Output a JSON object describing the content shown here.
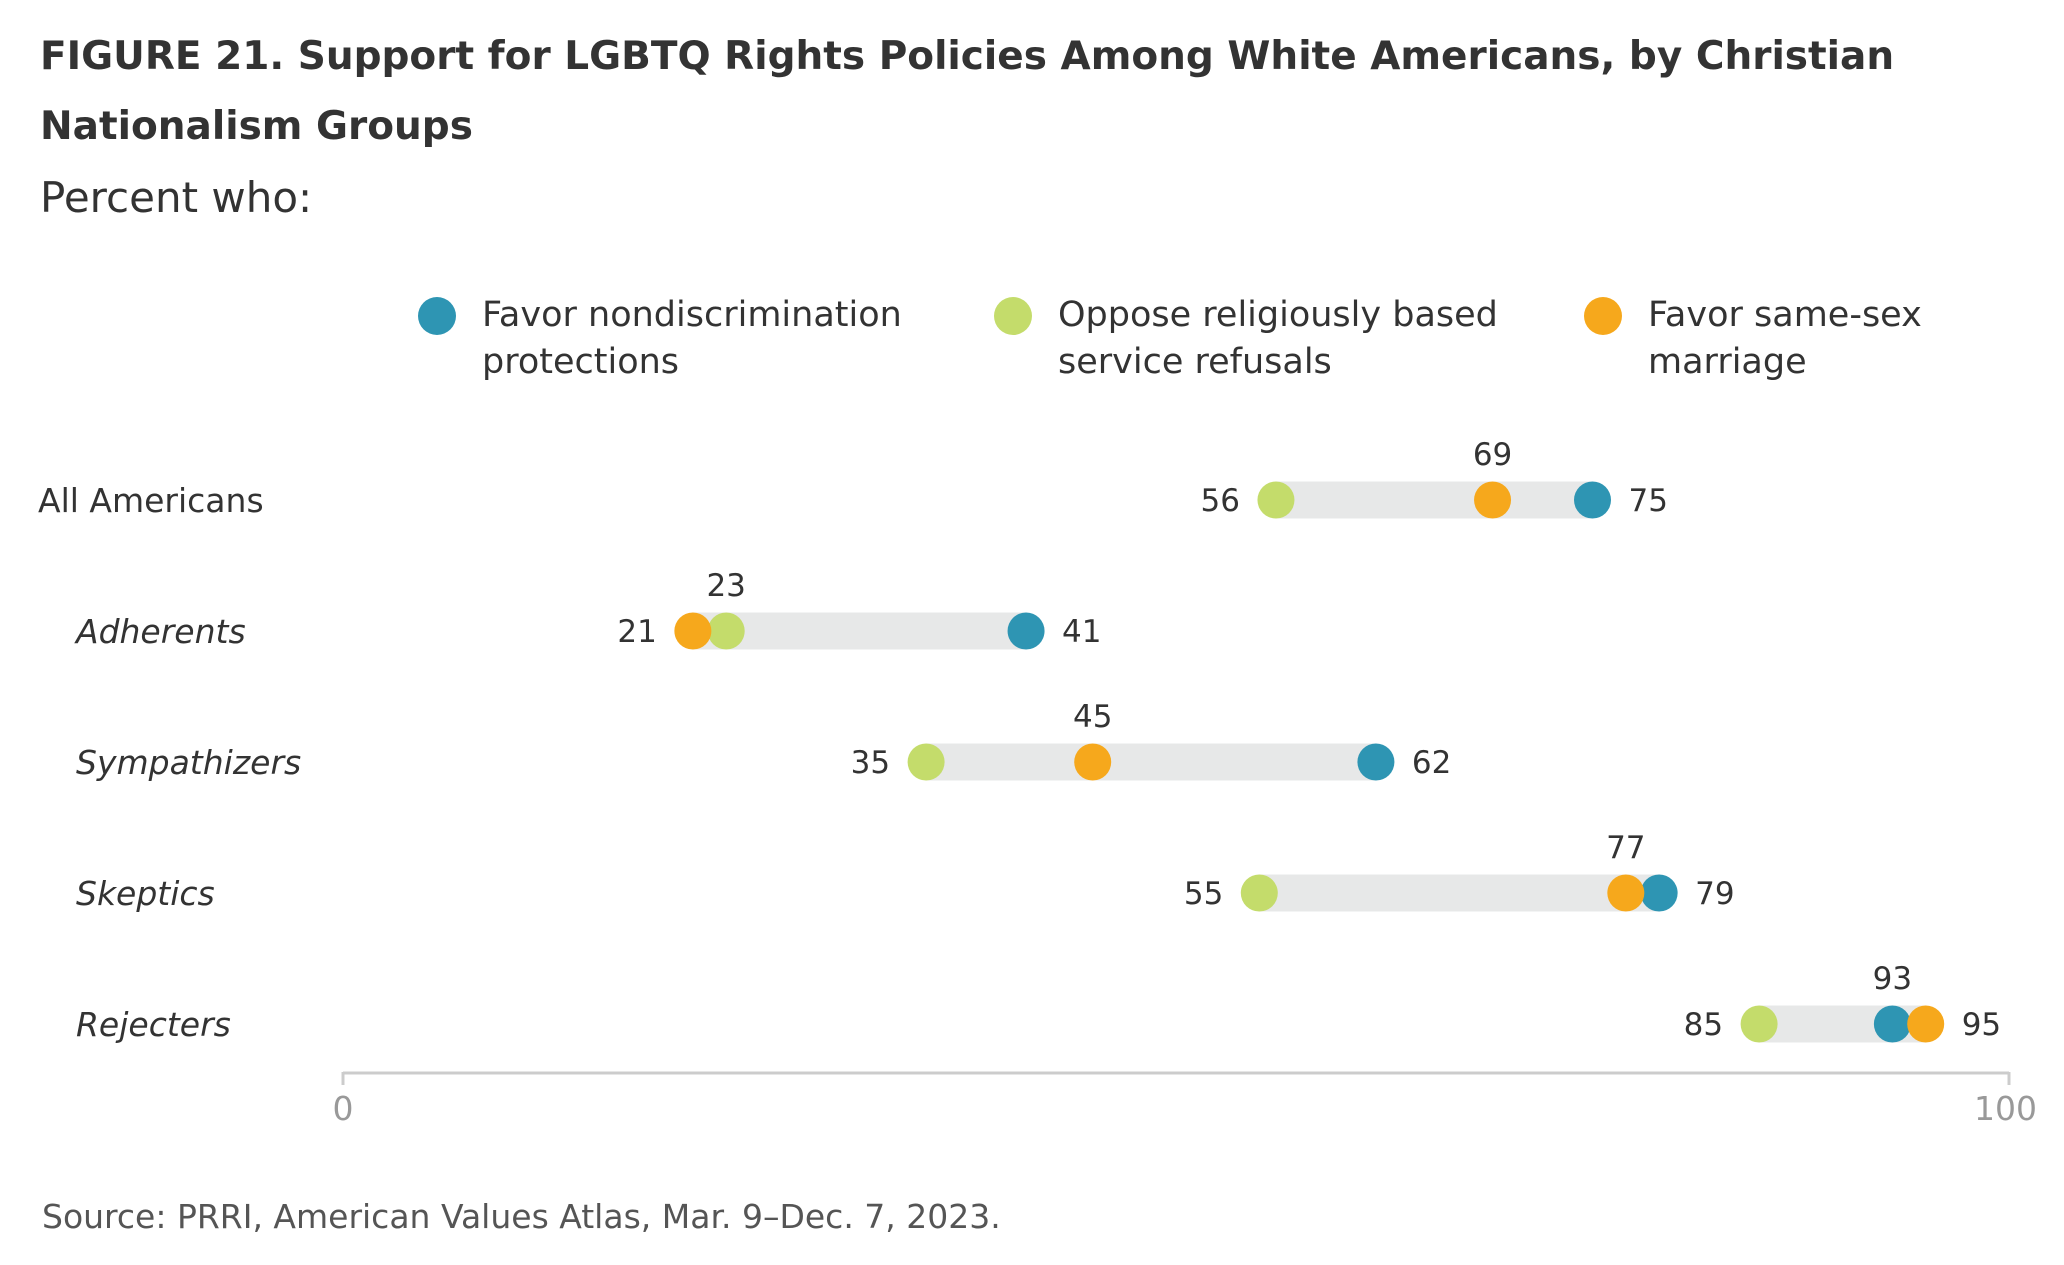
{
  "title": "FIGURE 21.  Support for LGBTQ Rights Policies Among White Americans, by Christian Nation­alism Groups",
  "subtitle": "Percent who:",
  "source": "Source: PRRI, American Values Atlas, Mar. 9–Dec. 7, 2023.",
  "colors": {
    "nondiscrimination": "#2e95b3",
    "service_refusals": "#c4dc6b",
    "same_sex_marriage": "#f6a81c",
    "bar": "#e7e8e8",
    "axis": "#cccccc"
  },
  "legend": [
    {
      "key": "nondiscrimination",
      "label": "Favor nondiscrimination protections"
    },
    {
      "key": "service_refusals",
      "label": "Oppose religiously based service refusals"
    },
    {
      "key": "same_sex_marriage",
      "label": "Favor same-sex marriage"
    }
  ],
  "chart_data": {
    "type": "dot-range",
    "categories": [
      "All Americans",
      "Adherents",
      "Sympathizers",
      "Skeptics",
      "Rejecters"
    ],
    "italic_categories": [
      "Adherents",
      "Sympathizers",
      "Skeptics",
      "Rejecters"
    ],
    "series": [
      {
        "key": "nondiscrimination",
        "name": "Favor nondiscrimination protections",
        "values": [
          75,
          41,
          62,
          79,
          93
        ]
      },
      {
        "key": "service_refusals",
        "name": "Oppose religiously based service refusals",
        "values": [
          56,
          23,
          35,
          55,
          85
        ]
      },
      {
        "key": "same_sex_marriage",
        "name": "Favor same-sex marriage",
        "values": [
          69,
          21,
          45,
          77,
          95
        ]
      }
    ],
    "xlim": [
      0,
      100
    ],
    "xticks": [
      0,
      100
    ],
    "grid": false,
    "legend_position": "top"
  }
}
